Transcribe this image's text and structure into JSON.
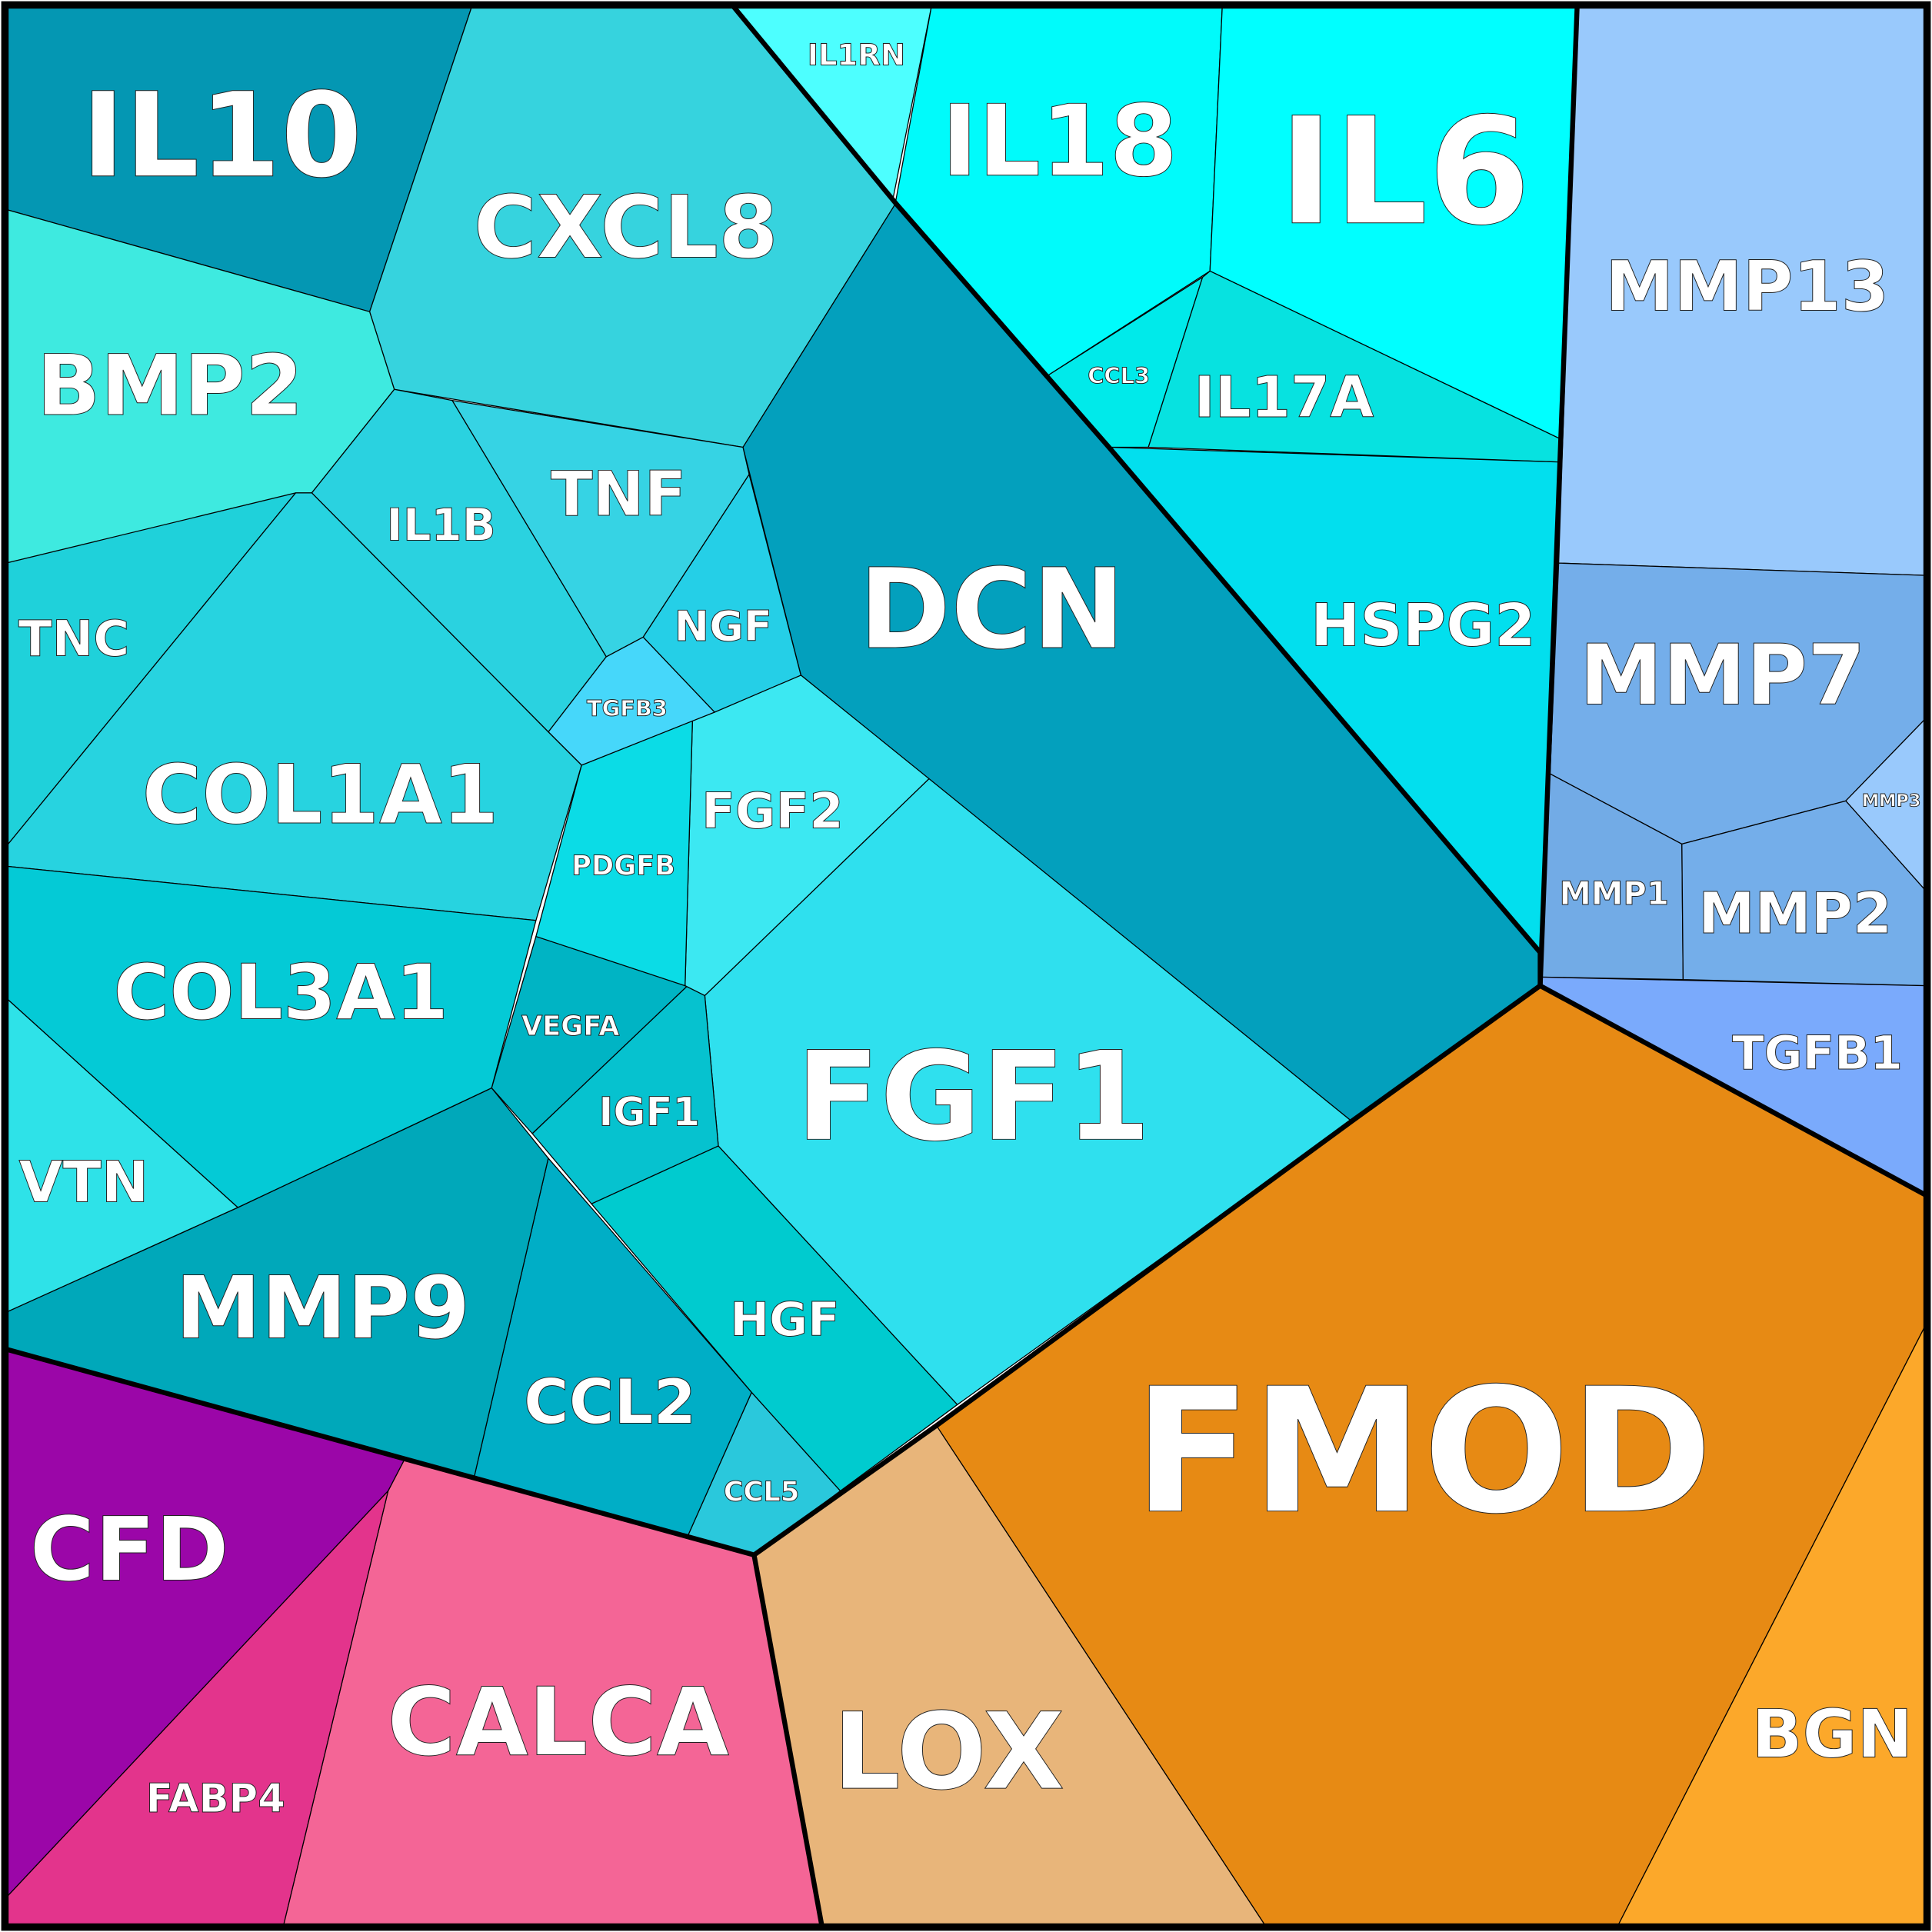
{
  "cells": [
    "IL10",
    "CXCL8",
    "IL1RN",
    "IL18",
    "IL6",
    "CCL3",
    "IL17A",
    "HSPG2",
    "DCN",
    "MMP13",
    "MMP7",
    "MMP3",
    "MMP1",
    "MMP2",
    "TGFB1",
    "FMOD",
    "BGN",
    "LOX",
    "CALCA",
    "FABP4",
    "CFD",
    "CCL5",
    "CCL2",
    "HGF",
    "MMP9",
    "FGF1",
    "IGF1",
    "VEGFA",
    "FGF2",
    "PDGFB",
    "TGFB3",
    "NGF",
    "TNF",
    "IL1B",
    "BMP2",
    "TNC",
    "COL1A1",
    "COL3A1",
    "VTN"
  ]
}
